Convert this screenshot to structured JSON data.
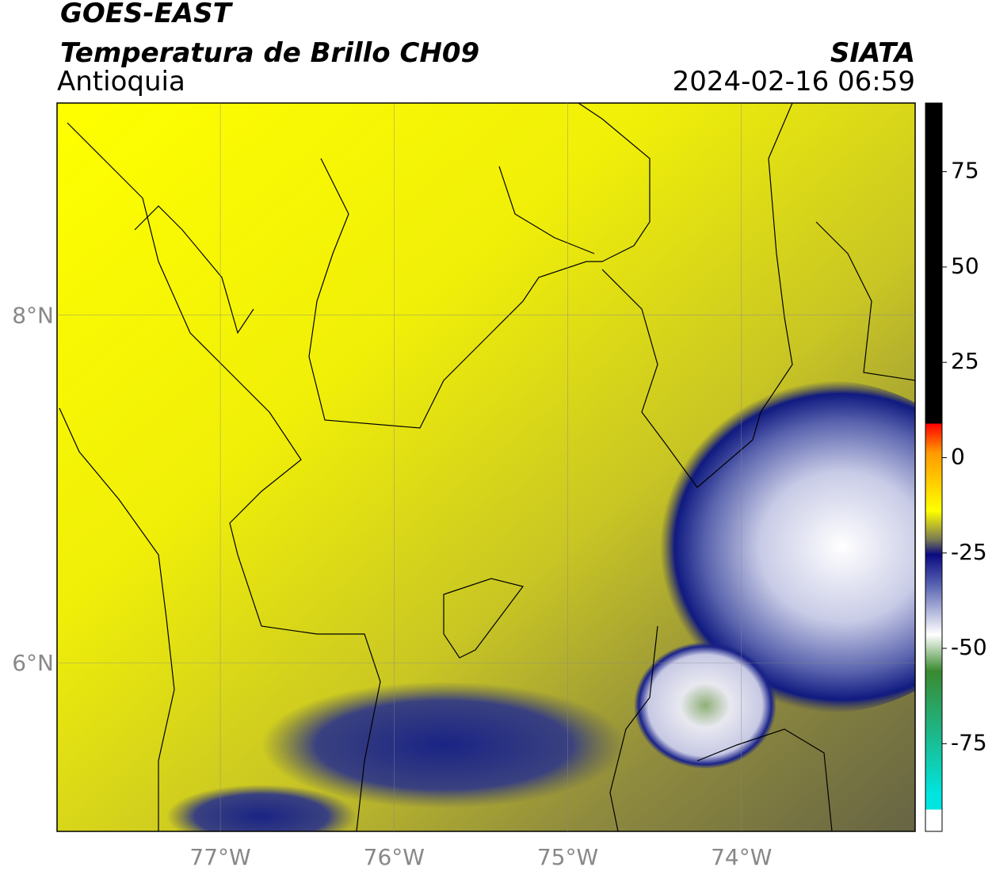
{
  "header": {
    "title": "GOES-EAST",
    "subtitle": "Temperatura de Brillo CH09",
    "region": "Antioquia",
    "source": "SIATA",
    "datetime": "2024-02-16 06:59"
  },
  "map": {
    "xlim": [
      -77.94,
      -73.0
    ],
    "ylim": [
      5.03,
      9.22
    ],
    "xticks": [
      {
        "value": -77,
        "label": "77°W"
      },
      {
        "value": -76,
        "label": "76°W"
      },
      {
        "value": -75,
        "label": "75°W"
      },
      {
        "value": -74,
        "label": "74°W"
      }
    ],
    "yticks": [
      {
        "value": 8,
        "label": "8°N"
      },
      {
        "value": 6,
        "label": "6°N"
      }
    ],
    "grid": true
  },
  "colorbar": {
    "lim": [
      -98,
      93
    ],
    "ticks": [
      75,
      50,
      25,
      0,
      -25,
      -50,
      -75
    ]
  }
}
